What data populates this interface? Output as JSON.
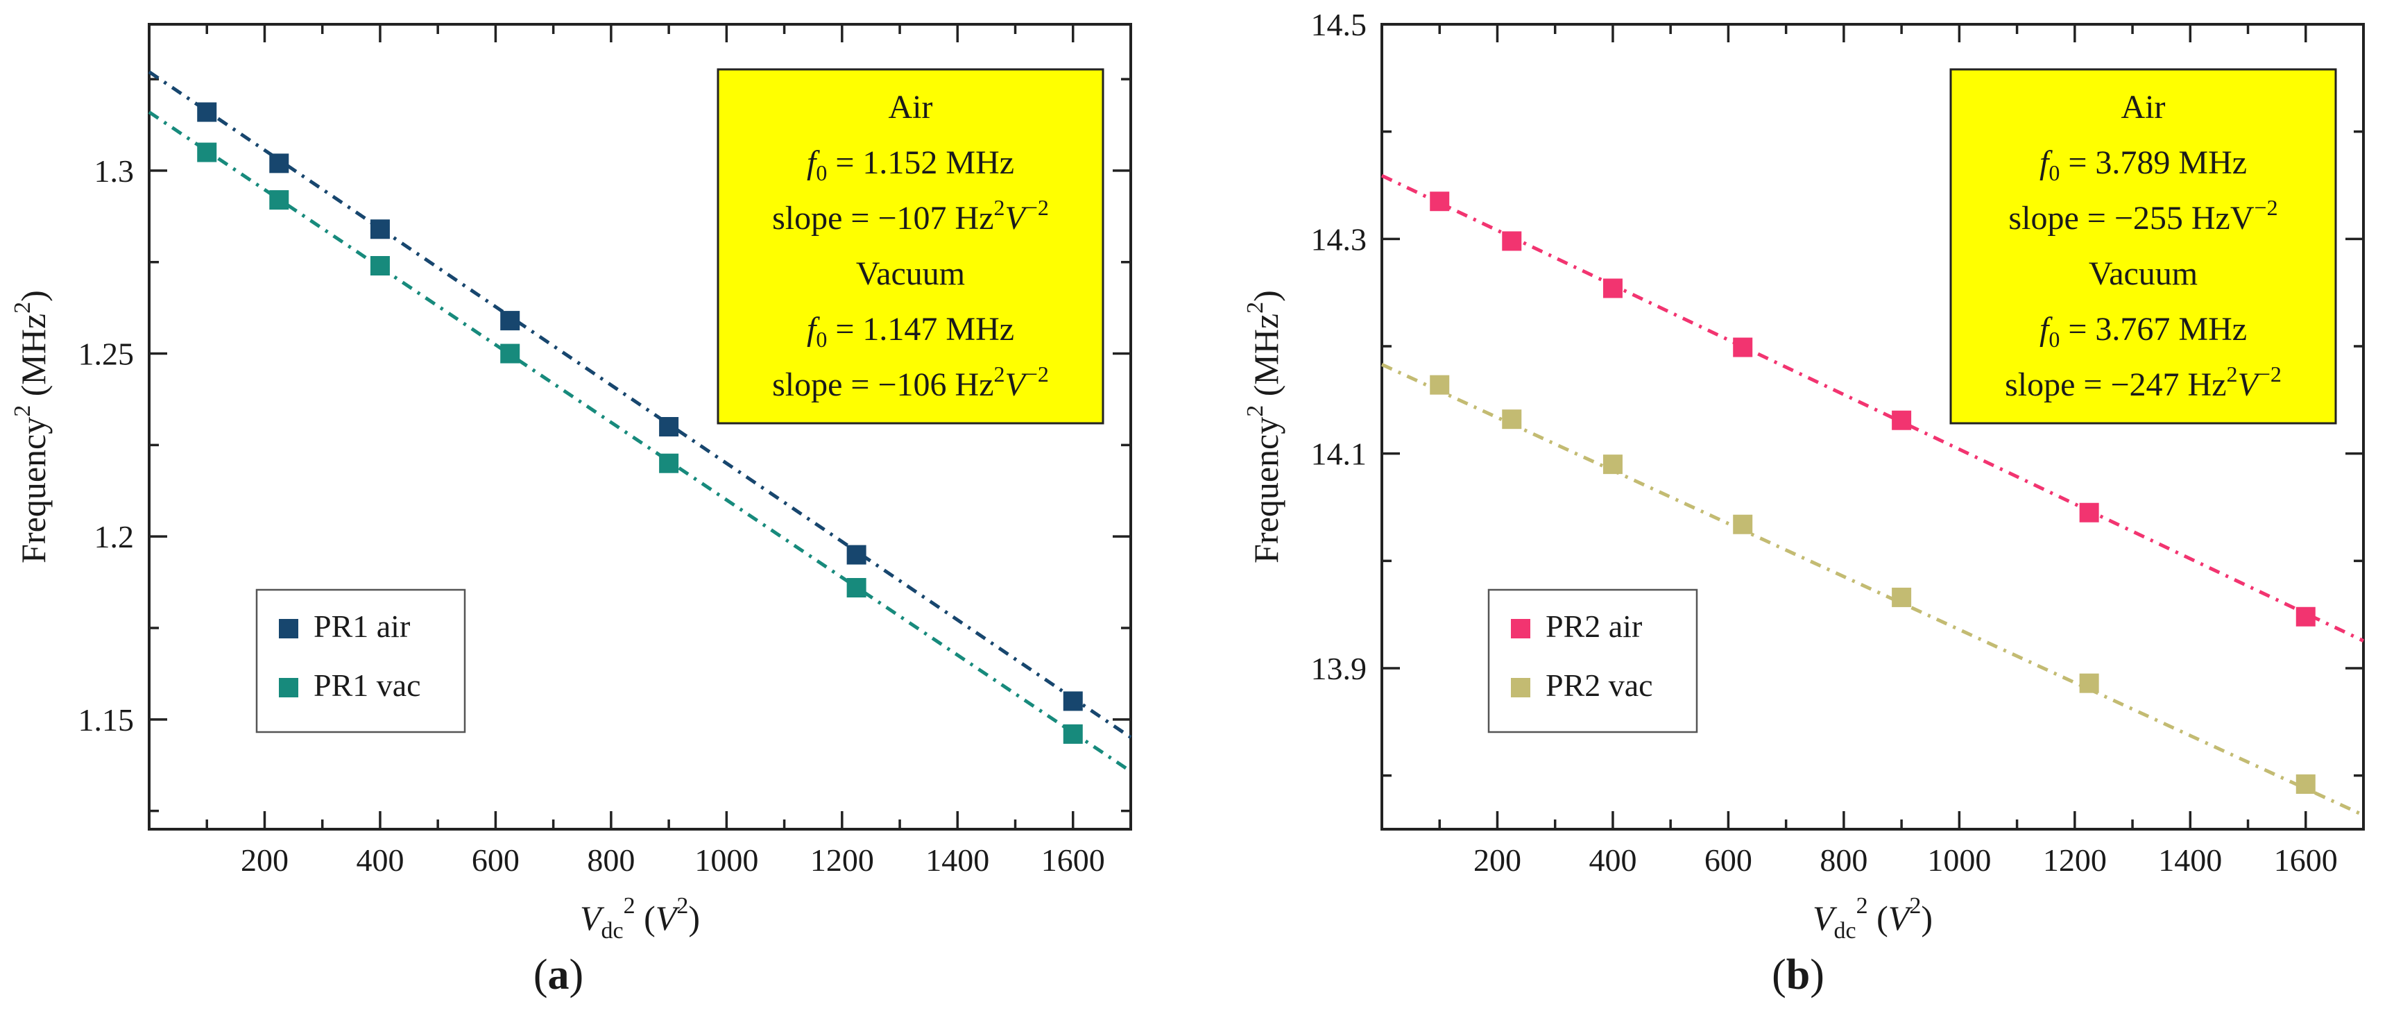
{
  "chart_data": [
    {
      "type": "scatter",
      "panel_label": "a",
      "xlabel": {
        "main": "V",
        "sub": "dc",
        "sup": "2",
        "units_open": " (",
        "units_var": "V",
        "units_sup": "2",
        "units_close": ")"
      },
      "ylabel": {
        "main": "Frequency",
        "sup": "2",
        "units_open": " (MHz",
        "units_sup": "2",
        "units_close": ")"
      },
      "xlim": [
        0,
        1700
      ],
      "ylim": [
        1.12,
        1.34
      ],
      "xticks": [
        200,
        400,
        600,
        800,
        1000,
        1200,
        1400,
        1600
      ],
      "xtick_labels": [
        "200",
        "400",
        "600",
        "800",
        "1000",
        "1200",
        "1400",
        "1600"
      ],
      "yticks": [
        1.15,
        1.2,
        1.25,
        1.3
      ],
      "ytick_labels": [
        "1.15",
        "1.2",
        "1.25",
        "1.3"
      ],
      "series": [
        {
          "name": "PR1 air",
          "color": "#17466e",
          "x": [
            100,
            225,
            400,
            625,
            900,
            1225,
            1600
          ],
          "y": [
            1.316,
            1.302,
            1.284,
            1.259,
            1.23,
            1.195,
            1.155
          ],
          "fit": {
            "intercept": 1.327,
            "slope": -0.000107
          }
        },
        {
          "name": "PR1 vac",
          "color": "#178a7c",
          "x": [
            100,
            225,
            400,
            625,
            900,
            1225,
            1600
          ],
          "y": [
            1.305,
            1.292,
            1.274,
            1.25,
            1.22,
            1.186,
            1.146
          ],
          "fit": {
            "intercept": 1.316,
            "slope": -0.000106
          }
        }
      ],
      "legend": {
        "position": "lower-left",
        "entries": [
          "PR1 air",
          "PR1 vac"
        ]
      },
      "annotation": {
        "position": "top-right",
        "lines": [
          {
            "text": "Air"
          },
          {
            "pre": "f",
            "sub": "0",
            "post": " = 1.152 MHz"
          },
          {
            "pre": "slope = −107 Hz",
            "sup1": "2",
            "mid": "V",
            "sup2": "−2"
          },
          {
            "text": "Vacuum"
          },
          {
            "pre": "f",
            "sub": "0",
            "post": " = 1.147 MHz"
          },
          {
            "pre": "slope = −106 Hz",
            "sup1": "2",
            "mid": "V",
            "sup2": "−2"
          }
        ]
      }
    },
    {
      "type": "scatter",
      "panel_label": "b",
      "xlabel": {
        "main": "V",
        "sub": "dc",
        "sup": "2",
        "units_open": " (",
        "units_var": "V",
        "units_sup": "2",
        "units_close": ")"
      },
      "ylabel": {
        "main": "Frequency",
        "sup": "2",
        "units_open": " (MHz",
        "units_sup": "2",
        "units_close": ")"
      },
      "xlim": [
        0,
        1700
      ],
      "ylim": [
        13.75,
        14.5
      ],
      "xticks": [
        200,
        400,
        600,
        800,
        1000,
        1200,
        1400,
        1600
      ],
      "xtick_labels": [
        "200",
        "400",
        "600",
        "800",
        "1000",
        "1200",
        "1400",
        "1600"
      ],
      "yticks": [
        13.9,
        14.1,
        14.3,
        14.5
      ],
      "ytick_labels": [
        "13.9",
        "14.1",
        "14.3",
        "14.5"
      ],
      "series": [
        {
          "name": "PR2 air",
          "color": "#f23470",
          "x": [
            100,
            225,
            400,
            625,
            900,
            1225,
            1600
          ],
          "y": [
            14.335,
            14.298,
            14.254,
            14.199,
            14.131,
            14.045,
            13.948
          ],
          "fit": {
            "intercept": 14.359,
            "slope": -0.000255
          }
        },
        {
          "name": "PR2 vac",
          "color": "#c3bb72",
          "x": [
            100,
            225,
            400,
            625,
            900,
            1225,
            1600
          ],
          "y": [
            14.164,
            14.132,
            14.09,
            14.034,
            13.966,
            13.886,
            13.792
          ],
          "fit": {
            "intercept": 14.183,
            "slope": -0.000247
          }
        }
      ],
      "legend": {
        "position": "lower-left",
        "entries": [
          "PR2 air",
          "PR2 vac"
        ]
      },
      "annotation": {
        "position": "top-right",
        "lines": [
          {
            "text": "Air"
          },
          {
            "pre": "f",
            "sub": "0",
            "post": " = 3.789 MHz"
          },
          {
            "pre": "slope = −255 HzV",
            "sup1": "",
            "mid": "",
            "sup2": "−2"
          },
          {
            "text": "Vacuum"
          },
          {
            "pre": "f",
            "sub": "0",
            "post": " = 3.767 MHz"
          },
          {
            "pre": "slope = −247 Hz",
            "sup1": "2",
            "mid": "V",
            "sup2": "−2"
          }
        ]
      }
    }
  ]
}
